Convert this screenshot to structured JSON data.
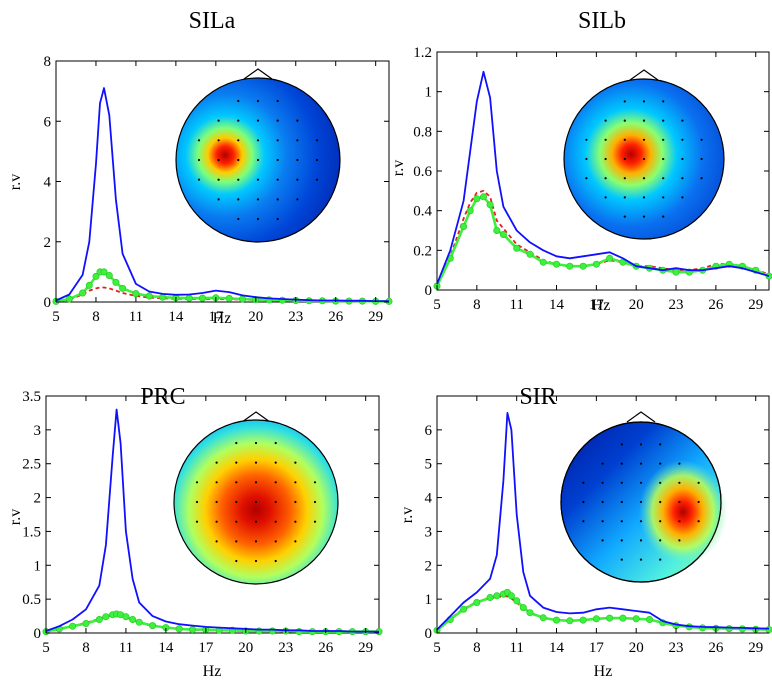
{
  "figure": {
    "panels": [
      "SILa",
      "SILb",
      "PRC",
      "SIR"
    ]
  },
  "chart_data": [
    {
      "type": "line",
      "title": "SILa",
      "xlabel": "Hz",
      "ylabel": "r.v",
      "xlim": [
        5,
        30
      ],
      "ylim": [
        0,
        8
      ],
      "xticks": [
        "5",
        "8",
        "11",
        "14",
        "17",
        "20",
        "23",
        "26",
        "29"
      ],
      "yticks": [
        "0",
        "2",
        "4",
        "6",
        "8"
      ],
      "ytick_values": [
        0,
        2,
        4,
        6,
        8
      ],
      "topomap": {
        "hotspot_side": "left",
        "colormap": "jet"
      },
      "x": [
        5,
        6,
        7,
        7.5,
        8,
        8.3,
        8.6,
        9,
        9.5,
        10,
        11,
        12,
        13,
        14,
        15,
        16,
        17,
        18,
        19,
        20,
        21,
        22,
        23,
        24,
        25,
        26,
        27,
        28,
        29,
        30
      ],
      "series": [
        {
          "name": "blue",
          "color": "#1010ff",
          "dash": "",
          "marker": false,
          "values": [
            0.05,
            0.25,
            0.9,
            2.0,
            4.6,
            6.6,
            7.1,
            6.2,
            3.4,
            1.6,
            0.6,
            0.35,
            0.27,
            0.24,
            0.25,
            0.3,
            0.38,
            0.33,
            0.22,
            0.16,
            0.12,
            0.1,
            0.08,
            0.06,
            0.05,
            0.05,
            0.04,
            0.04,
            0.03,
            0.03
          ]
        },
        {
          "name": "green",
          "color": "#3ef03e",
          "dash": "",
          "marker": true,
          "values": [
            0.02,
            0.1,
            0.3,
            0.55,
            0.85,
            1.0,
            1.0,
            0.88,
            0.65,
            0.45,
            0.28,
            0.2,
            0.16,
            0.14,
            0.13,
            0.13,
            0.14,
            0.12,
            0.1,
            0.08,
            0.07,
            0.06,
            0.05,
            0.04,
            0.04,
            0.03,
            0.03,
            0.03,
            0.02,
            0.02
          ]
        },
        {
          "name": "red",
          "color": "#e02020",
          "dash": "4,3",
          "marker": false,
          "values": [
            0.02,
            0.08,
            0.25,
            0.38,
            0.45,
            0.48,
            0.48,
            0.45,
            0.38,
            0.3,
            0.2,
            0.15,
            0.12,
            0.11,
            0.1,
            0.1,
            0.1,
            0.09,
            0.08,
            0.07,
            0.06,
            0.05,
            0.04,
            0.04,
            0.03,
            0.03,
            0.03,
            0.02,
            0.02,
            0.02
          ]
        }
      ]
    },
    {
      "type": "line",
      "title": "SILb",
      "xlabel": "Hz",
      "ylabel": "r.v",
      "xlim": [
        5,
        30
      ],
      "ylim": [
        0,
        1.2
      ],
      "xticks": [
        "5",
        "8",
        "11",
        "14",
        "17",
        "20",
        "23",
        "26",
        "29"
      ],
      "yticks": [
        "0",
        "0.2",
        "0.4",
        "0.6",
        "0.8",
        "1",
        "1.2"
      ],
      "ytick_values": [
        0,
        0.2,
        0.4,
        0.6,
        0.8,
        1,
        1.2
      ],
      "topomap": {
        "hotspot_side": "center-left",
        "colormap": "jet"
      },
      "x": [
        5,
        6,
        7,
        7.5,
        8,
        8.5,
        9,
        9.5,
        10,
        11,
        12,
        13,
        14,
        15,
        16,
        17,
        18,
        19,
        20,
        21,
        22,
        23,
        24,
        25,
        26,
        27,
        28,
        29,
        30
      ],
      "series": [
        {
          "name": "blue",
          "color": "#1010ff",
          "dash": "",
          "marker": false,
          "values": [
            0.03,
            0.2,
            0.45,
            0.7,
            0.95,
            1.1,
            0.97,
            0.6,
            0.42,
            0.3,
            0.24,
            0.2,
            0.17,
            0.16,
            0.17,
            0.18,
            0.19,
            0.16,
            0.12,
            0.11,
            0.1,
            0.11,
            0.1,
            0.1,
            0.11,
            0.12,
            0.11,
            0.09,
            0.07
          ]
        },
        {
          "name": "green",
          "color": "#3ef03e",
          "dash": "",
          "marker": true,
          "values": [
            0.02,
            0.16,
            0.32,
            0.4,
            0.46,
            0.47,
            0.43,
            0.3,
            0.28,
            0.21,
            0.18,
            0.14,
            0.13,
            0.12,
            0.12,
            0.13,
            0.16,
            0.14,
            0.12,
            0.11,
            0.1,
            0.09,
            0.09,
            0.1,
            0.12,
            0.13,
            0.12,
            0.1,
            0.07
          ]
        },
        {
          "name": "red",
          "color": "#e02020",
          "dash": "4,3",
          "marker": false,
          "values": [
            0.02,
            0.17,
            0.36,
            0.44,
            0.49,
            0.5,
            0.47,
            0.35,
            0.31,
            0.23,
            0.19,
            0.15,
            0.13,
            0.12,
            0.12,
            0.13,
            0.15,
            0.14,
            0.12,
            0.12,
            0.11,
            0.1,
            0.1,
            0.11,
            0.13,
            0.13,
            0.12,
            0.1,
            0.08
          ]
        }
      ]
    },
    {
      "type": "line",
      "title": "PRC",
      "xlabel": "Hz",
      "ylabel": "r.v",
      "xlim": [
        5,
        30
      ],
      "ylim": [
        0,
        3.5
      ],
      "xticks": [
        "5",
        "8",
        "11",
        "14",
        "17",
        "20",
        "23",
        "26",
        "29"
      ],
      "yticks": [
        "0",
        "0.5",
        "1",
        "1.5",
        "2",
        "2.5",
        "3",
        "3.5"
      ],
      "ytick_values": [
        0,
        0.5,
        1,
        1.5,
        2,
        2.5,
        3,
        3.5
      ],
      "topomap": {
        "hotspot_side": "center",
        "colormap": "jet"
      },
      "x": [
        5,
        6,
        7,
        8,
        9,
        9.5,
        10,
        10.3,
        10.6,
        11,
        11.5,
        12,
        13,
        14,
        15,
        16,
        17,
        18,
        19,
        20,
        21,
        22,
        23,
        24,
        25,
        26,
        27,
        28,
        29,
        30
      ],
      "series": [
        {
          "name": "blue",
          "color": "#1010ff",
          "dash": "",
          "marker": false,
          "values": [
            0.03,
            0.1,
            0.2,
            0.35,
            0.7,
            1.3,
            2.6,
            3.3,
            2.8,
            1.5,
            0.8,
            0.45,
            0.25,
            0.17,
            0.13,
            0.11,
            0.09,
            0.08,
            0.07,
            0.06,
            0.05,
            0.05,
            0.04,
            0.04,
            0.03,
            0.03,
            0.03,
            0.02,
            0.02,
            0.02
          ]
        },
        {
          "name": "green",
          "color": "#3ef03e",
          "dash": "",
          "marker": true,
          "values": [
            0.02,
            0.06,
            0.1,
            0.14,
            0.2,
            0.24,
            0.27,
            0.28,
            0.27,
            0.24,
            0.2,
            0.16,
            0.11,
            0.08,
            0.06,
            0.05,
            0.05,
            0.04,
            0.04,
            0.03,
            0.03,
            0.03,
            0.03,
            0.02,
            0.02,
            0.02,
            0.02,
            0.02,
            0.02,
            0.02
          ]
        },
        {
          "name": "red",
          "color": "#e02020",
          "dash": "4,3",
          "marker": false,
          "values": [
            0.02,
            0.05,
            0.1,
            0.15,
            0.21,
            0.25,
            0.27,
            0.27,
            0.26,
            0.23,
            0.19,
            0.15,
            0.1,
            0.08,
            0.06,
            0.05,
            0.04,
            0.04,
            0.03,
            0.03,
            0.03,
            0.03,
            0.02,
            0.02,
            0.02,
            0.02,
            0.02,
            0.02,
            0.02,
            0.02
          ]
        }
      ]
    },
    {
      "type": "line",
      "title": "SIR",
      "xlabel": "Hz",
      "ylabel": "r.v",
      "xlim": [
        5,
        30
      ],
      "ylim": [
        0,
        7
      ],
      "xticks": [
        "5",
        "8",
        "11",
        "14",
        "17",
        "20",
        "23",
        "26",
        "29"
      ],
      "yticks": [
        "0",
        "1",
        "2",
        "3",
        "4",
        "5",
        "6"
      ],
      "ytick_values": [
        0,
        1,
        2,
        3,
        4,
        5,
        6
      ],
      "topomap": {
        "hotspot_side": "right",
        "colormap": "jet"
      },
      "x": [
        5,
        6,
        7,
        8,
        9,
        9.5,
        10,
        10.3,
        10.6,
        11,
        11.5,
        12,
        13,
        14,
        15,
        16,
        17,
        18,
        19,
        20,
        21,
        22,
        23,
        24,
        25,
        26,
        27,
        28,
        29,
        30
      ],
      "series": [
        {
          "name": "blue",
          "color": "#1010ff",
          "dash": "",
          "marker": false,
          "values": [
            0.1,
            0.5,
            0.9,
            1.2,
            1.6,
            2.3,
            4.5,
            6.5,
            6.0,
            3.5,
            1.8,
            1.1,
            0.75,
            0.62,
            0.58,
            0.6,
            0.7,
            0.75,
            0.7,
            0.65,
            0.6,
            0.35,
            0.25,
            0.2,
            0.18,
            0.17,
            0.16,
            0.15,
            0.14,
            0.13
          ]
        },
        {
          "name": "green",
          "color": "#3ef03e",
          "dash": "",
          "marker": true,
          "values": [
            0.08,
            0.4,
            0.7,
            0.9,
            1.05,
            1.1,
            1.15,
            1.2,
            1.1,
            0.95,
            0.75,
            0.6,
            0.45,
            0.38,
            0.36,
            0.38,
            0.42,
            0.44,
            0.44,
            0.42,
            0.4,
            0.3,
            0.22,
            0.18,
            0.15,
            0.14,
            0.13,
            0.12,
            0.11,
            0.1
          ]
        },
        {
          "name": "red",
          "color": "#e02020",
          "dash": "4,3",
          "marker": false,
          "values": [
            0.08,
            0.42,
            0.72,
            0.92,
            1.02,
            1.06,
            1.08,
            1.08,
            1.02,
            0.9,
            0.72,
            0.58,
            0.44,
            0.38,
            0.36,
            0.38,
            0.42,
            0.45,
            0.44,
            0.42,
            0.4,
            0.3,
            0.22,
            0.18,
            0.15,
            0.14,
            0.13,
            0.12,
            0.11,
            0.1
          ]
        }
      ]
    }
  ]
}
